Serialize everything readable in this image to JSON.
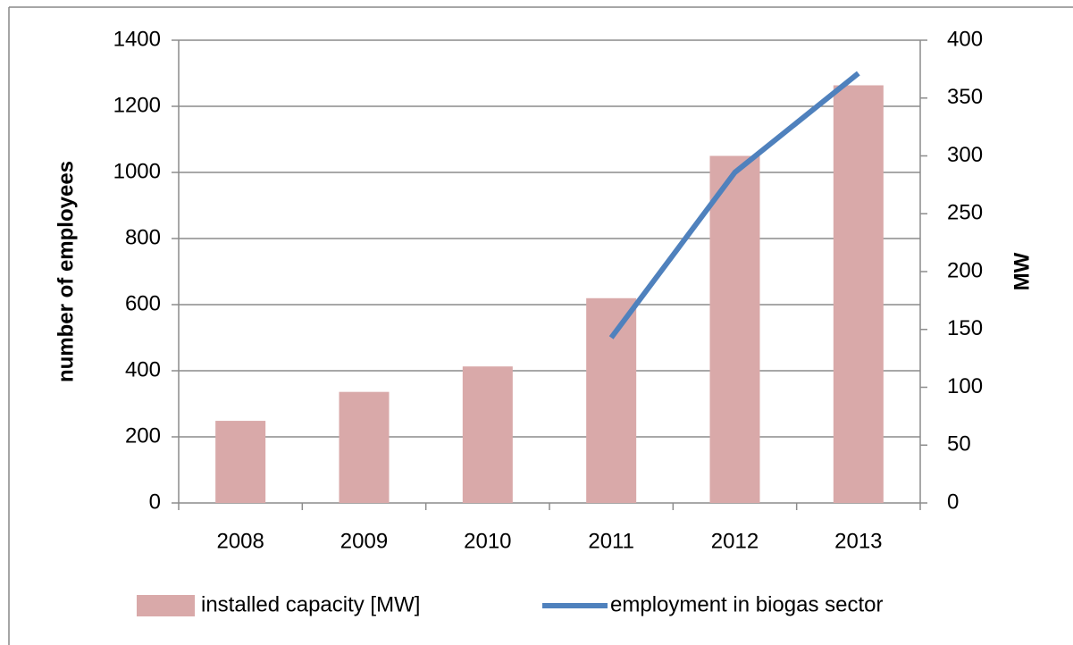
{
  "chart_data": {
    "type": "bar",
    "y_label": "number of employees",
    "y2_label": "MW",
    "categories": [
      "2008",
      "2009",
      "2010",
      "2011",
      "2012",
      "2013"
    ],
    "series": [
      {
        "name": "installed capacity [MW]",
        "type": "bar",
        "axis": "y2",
        "color": "#d9a9a9",
        "values": [
          71,
          96,
          118,
          177,
          300,
          361
        ]
      },
      {
        "name": "employment in biogas sector",
        "type": "line",
        "axis": "y",
        "color": "#4f81bd",
        "values": [
          null,
          null,
          null,
          500,
          1000,
          1300
        ]
      }
    ],
    "ylim": [
      0,
      1400
    ],
    "yticks": [
      0,
      200,
      400,
      600,
      800,
      1000,
      1200,
      1400
    ],
    "y2lim": [
      0,
      400
    ],
    "y2ticks": [
      0,
      50,
      100,
      150,
      200,
      250,
      300,
      350,
      400
    ],
    "grid": true,
    "legend": "bottom"
  }
}
